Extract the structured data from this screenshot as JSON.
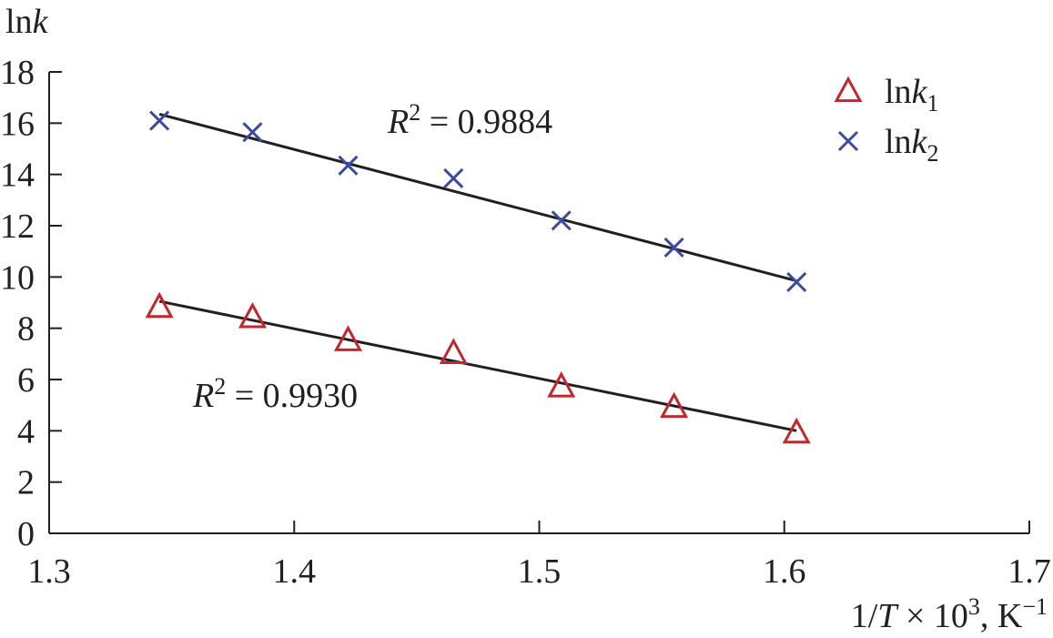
{
  "chart_data": {
    "type": "scatter",
    "ylabel_parts": {
      "main": "ln",
      "var": "k"
    },
    "xlabel_parts": {
      "pre": "1/",
      "var": "T",
      "post": " × 10",
      "exp": "3",
      "unit": ", K",
      "unit_exp": "−1"
    },
    "xlim": [
      1.3,
      1.7
    ],
    "ylim": [
      0,
      18
    ],
    "x_ticks": [
      1.3,
      1.4,
      1.5,
      1.6,
      1.7
    ],
    "x_tick_labels": [
      "1.3",
      "1.4",
      "1.5",
      "1.6",
      "1.7"
    ],
    "y_ticks": [
      0,
      2,
      4,
      6,
      8,
      10,
      12,
      14,
      16,
      18
    ],
    "y_tick_labels": [
      "0",
      "2",
      "4",
      "6",
      "8",
      "10",
      "12",
      "14",
      "16",
      "18"
    ],
    "legend_position": "top-right",
    "series": [
      {
        "name": "lnk1",
        "label_main": "ln",
        "label_var": "k",
        "label_sub": "1",
        "marker": "triangle",
        "color": "#c1272d",
        "x": [
          1.345,
          1.383,
          1.422,
          1.465,
          1.509,
          1.555,
          1.605
        ],
        "y": [
          8.8,
          8.4,
          7.5,
          7.0,
          5.7,
          4.9,
          3.9
        ],
        "fit": {
          "x": [
            1.345,
            1.605
          ],
          "y": [
            9.05,
            4.0
          ]
        },
        "r2_label": {
          "var": "R",
          "exp": "2",
          "text": " = 0.9930"
        }
      },
      {
        "name": "lnk2",
        "label_main": "ln",
        "label_var": "k",
        "label_sub": "2",
        "marker": "x",
        "color": "#3b4ba0",
        "x": [
          1.345,
          1.383,
          1.422,
          1.465,
          1.509,
          1.555,
          1.605
        ],
        "y": [
          16.1,
          15.65,
          14.35,
          13.85,
          12.2,
          11.15,
          9.8
        ],
        "fit": {
          "x": [
            1.345,
            1.605
          ],
          "y": [
            16.35,
            9.85
          ]
        },
        "r2_label": {
          "var": "R",
          "exp": "2",
          "text": " = 0.9884"
        }
      }
    ]
  }
}
